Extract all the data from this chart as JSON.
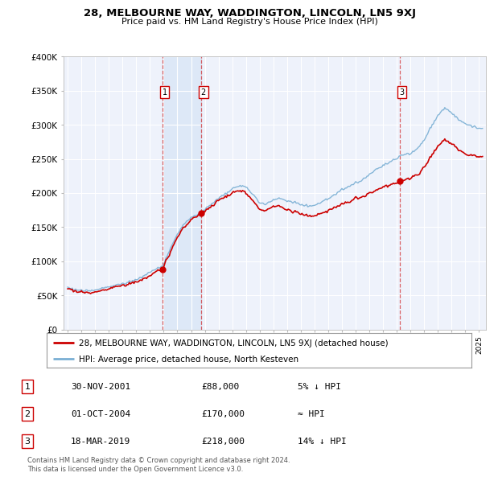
{
  "title": "28, MELBOURNE WAY, WADDINGTON, LINCOLN, LN5 9XJ",
  "subtitle": "Price paid vs. HM Land Registry's House Price Index (HPI)",
  "ylabel_ticks": [
    "£0",
    "£50K",
    "£100K",
    "£150K",
    "£200K",
    "£250K",
    "£300K",
    "£350K",
    "£400K"
  ],
  "ytick_values": [
    0,
    50000,
    100000,
    150000,
    200000,
    250000,
    300000,
    350000,
    400000
  ],
  "ylim": [
    0,
    400000
  ],
  "xlim_start": 1994.7,
  "xlim_end": 2025.5,
  "sale_dates": [
    2001.92,
    2004.75,
    2019.21
  ],
  "sale_prices": [
    88000,
    170000,
    218000
  ],
  "sale_labels": [
    "1",
    "2",
    "3"
  ],
  "hpi_color": "#7aafd4",
  "sold_color": "#cc0000",
  "legend_sold": "28, MELBOURNE WAY, WADDINGTON, LINCOLN, LN5 9XJ (detached house)",
  "legend_hpi": "HPI: Average price, detached house, North Kesteven",
  "table_rows": [
    {
      "num": "1",
      "date": "30-NOV-2001",
      "price": "£88,000",
      "rel": "5% ↓ HPI"
    },
    {
      "num": "2",
      "date": "01-OCT-2004",
      "price": "£170,000",
      "rel": "≈ HPI"
    },
    {
      "num": "3",
      "date": "18-MAR-2019",
      "price": "£218,000",
      "rel": "14% ↓ HPI"
    }
  ],
  "footnote": "Contains HM Land Registry data © Crown copyright and database right 2024.\nThis data is licensed under the Open Government Licence v3.0.",
  "background_plot": "#eef2fb",
  "background_fig": "#ffffff",
  "grid_color": "#ffffff",
  "vspan_color": "#dde8f7"
}
